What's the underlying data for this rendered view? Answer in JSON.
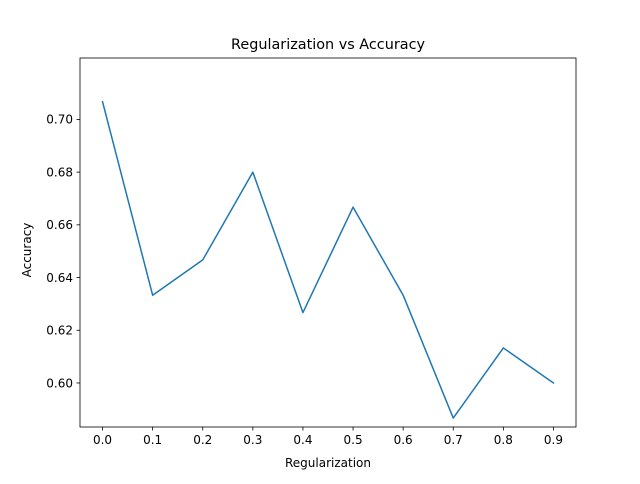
{
  "chart_data": {
    "type": "line",
    "title": "Regularization vs Accuracy",
    "xlabel": "Regularization",
    "ylabel": "Accuracy",
    "xlim": [
      -0.045,
      0.945
    ],
    "ylim": [
      0.5833,
      0.7233
    ],
    "xticks": [
      0.0,
      0.1,
      0.2,
      0.3,
      0.4,
      0.5,
      0.6,
      0.7,
      0.8,
      0.9
    ],
    "xtick_labels": [
      "0.0",
      "0.1",
      "0.2",
      "0.3",
      "0.4",
      "0.5",
      "0.6",
      "0.7",
      "0.8",
      "0.9"
    ],
    "yticks": [
      0.6,
      0.62,
      0.64,
      0.66,
      0.68,
      0.7
    ],
    "ytick_labels": [
      "0.60",
      "0.62",
      "0.64",
      "0.66",
      "0.68",
      "0.70"
    ],
    "grid": false,
    "legend": "none",
    "series": [
      {
        "color": "#1f77b4",
        "x": [
          0.0,
          0.1,
          0.2,
          0.3,
          0.4,
          0.5,
          0.6,
          0.7,
          0.8,
          0.9
        ],
        "y": [
          0.7067,
          0.6333,
          0.6467,
          0.68,
          0.6267,
          0.6667,
          0.6333,
          0.5867,
          0.6133,
          0.6
        ]
      }
    ]
  }
}
